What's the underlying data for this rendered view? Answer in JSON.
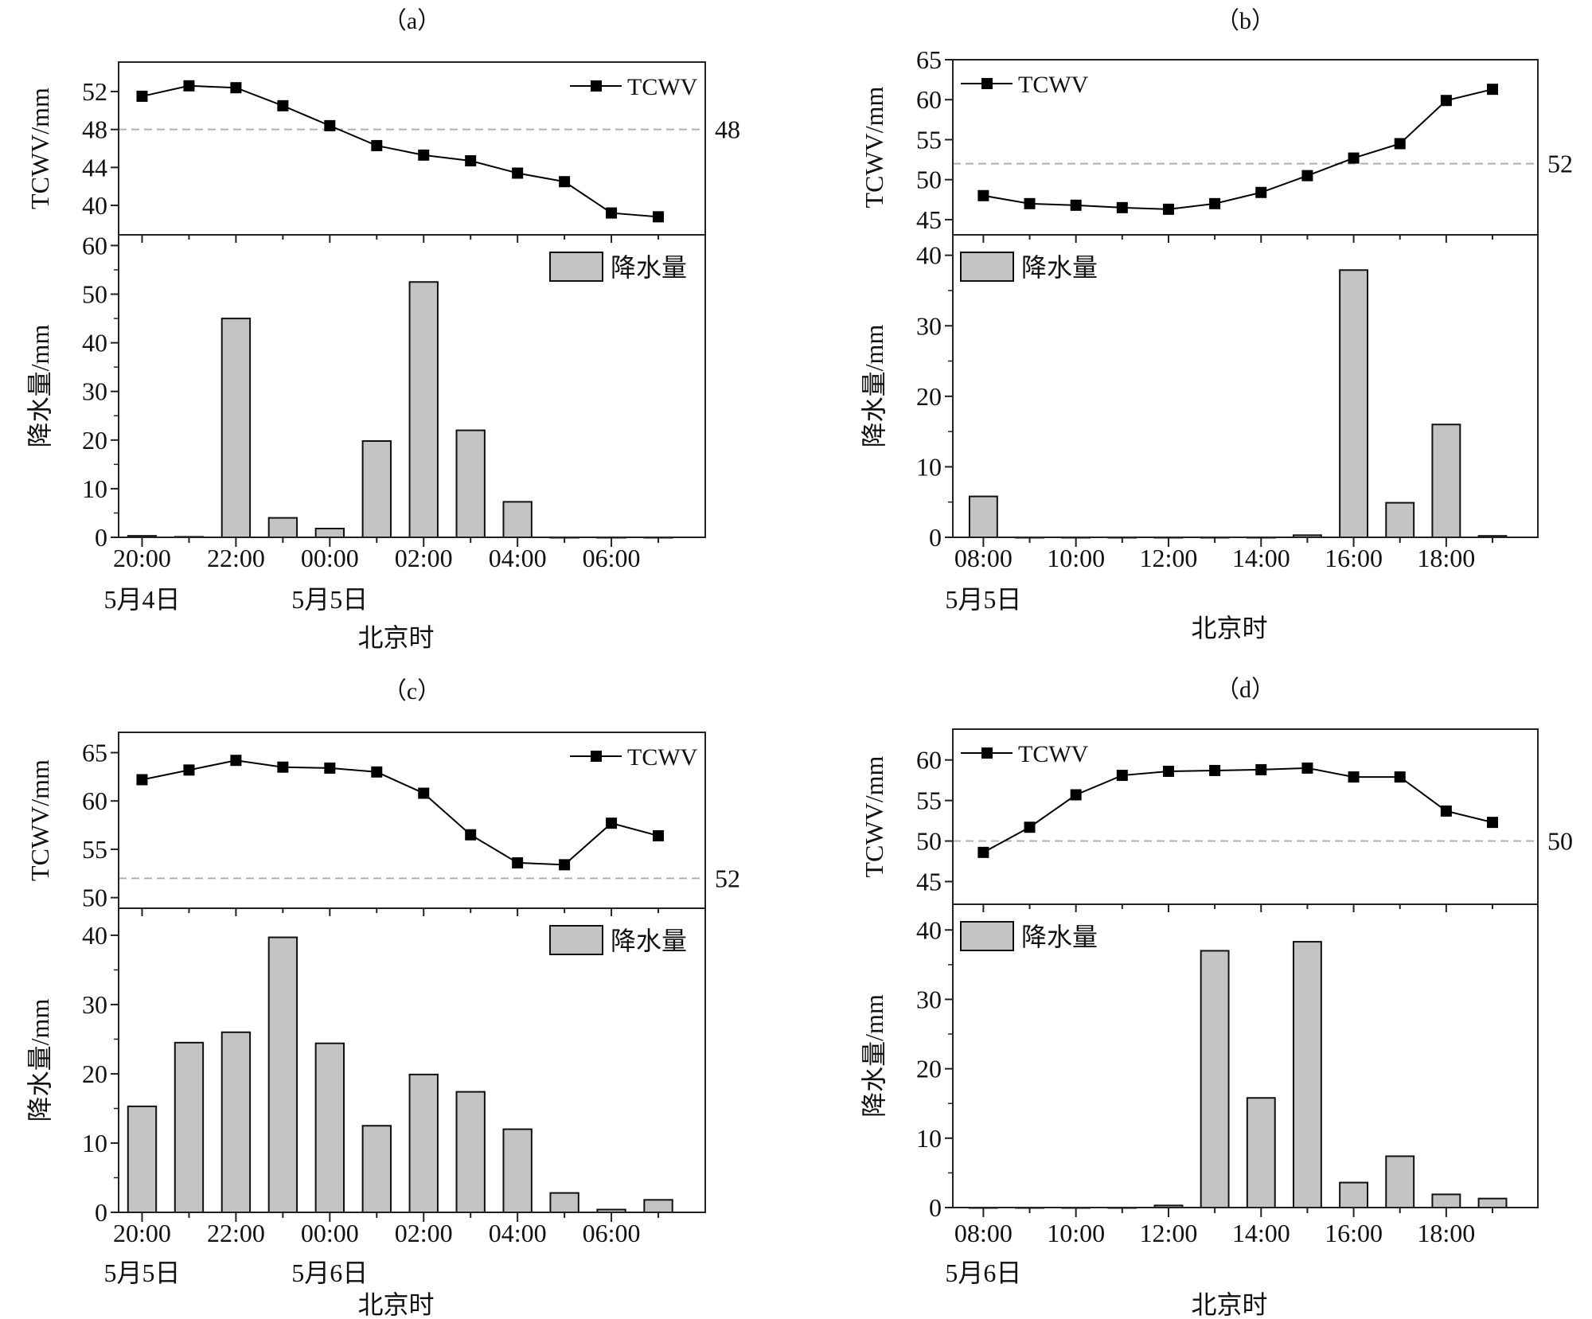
{
  "chart_data": [
    {
      "type": "line+bar",
      "title": "（a）",
      "categories": [
        "20:00",
        "21:00",
        "22:00",
        "23:00",
        "00:00",
        "01:00",
        "02:00",
        "03:00",
        "04:00",
        "05:00",
        "06:00",
        "07:00"
      ],
      "tick_labels": [
        "20:00",
        "22:00",
        "00:00",
        "02:00",
        "04:00",
        "06:00"
      ],
      "date_labels": [
        {
          "at": "20:00",
          "text": "5月4日"
        },
        {
          "at": "00:00",
          "text": "5月5日"
        }
      ],
      "xlabel": "北京时",
      "line": {
        "name": "TCWV",
        "ylabel": "TCWV/mm",
        "values": [
          51.5,
          52.6,
          52.4,
          50.5,
          48.4,
          46.3,
          45.3,
          44.7,
          43.4,
          42.5,
          39.2,
          38.8
        ],
        "ylim": [
          36.9,
          55.1
        ],
        "yticks": [
          40,
          44,
          48,
          52
        ],
        "threshold": 48,
        "threshold_label": "48",
        "legend": "top-right"
      },
      "bar": {
        "name": "降水量",
        "ylabel": "降水量/mm",
        "values": [
          0.3,
          0.1,
          45,
          4,
          1.8,
          19.8,
          52.5,
          22,
          7.3,
          0,
          0,
          0
        ],
        "ylim": [
          0,
          62.2
        ],
        "yticks": [
          0,
          10,
          20,
          30,
          40,
          50,
          60
        ],
        "legend": "top-right"
      }
    },
    {
      "type": "line+bar",
      "title": "（b）",
      "categories": [
        "08:00",
        "09:00",
        "10:00",
        "11:00",
        "12:00",
        "13:00",
        "14:00",
        "15:00",
        "16:00",
        "17:00",
        "18:00",
        "19:00"
      ],
      "tick_labels": [
        "08:00",
        "10:00",
        "12:00",
        "14:00",
        "16:00",
        "18:00"
      ],
      "date_labels": [
        {
          "at": "08:00",
          "text": "5月5日"
        }
      ],
      "xlabel": "北京时",
      "line": {
        "name": "TCWV",
        "ylabel": "TCWV/mm",
        "values": [
          48.0,
          47.0,
          46.8,
          46.5,
          46.3,
          47.0,
          48.4,
          50.5,
          52.7,
          54.5,
          59.9,
          61.3
        ],
        "ylim": [
          43.1,
          65
        ],
        "yticks": [
          45,
          50,
          55,
          60,
          65
        ],
        "threshold": 52,
        "threshold_label": "52",
        "legend": "top-left"
      },
      "bar": {
        "name": "降水量",
        "ylabel": "降水量/mm",
        "values": [
          5.8,
          0,
          0,
          0,
          0,
          0,
          0,
          0.3,
          37.9,
          4.9,
          16,
          0.2
        ],
        "ylim": [
          0,
          42.9
        ],
        "yticks": [
          0,
          10,
          20,
          30,
          40
        ],
        "legend": "top-left"
      }
    },
    {
      "type": "line+bar",
      "title": "（c）",
      "categories": [
        "20:00",
        "21:00",
        "22:00",
        "23:00",
        "00:00",
        "01:00",
        "02:00",
        "03:00",
        "04:00",
        "05:00",
        "06:00",
        "07:00"
      ],
      "tick_labels": [
        "20:00",
        "22:00",
        "00:00",
        "02:00",
        "04:00",
        "06:00"
      ],
      "date_labels": [
        {
          "at": "20:00",
          "text": "5月5日"
        },
        {
          "at": "00:00",
          "text": "5月6日"
        }
      ],
      "xlabel": "北京时",
      "line": {
        "name": "TCWV",
        "ylabel": "TCWV/mm",
        "values": [
          62.2,
          63.2,
          64.2,
          63.5,
          63.4,
          63.0,
          60.8,
          56.5,
          53.6,
          53.4,
          57.7,
          56.4
        ],
        "ylim": [
          48.9,
          67.1
        ],
        "yticks": [
          50,
          55,
          60,
          65
        ],
        "threshold": 52,
        "threshold_label": "52",
        "legend": "top-right"
      },
      "bar": {
        "name": "降水量",
        "ylabel": "降水量/mm",
        "values": [
          15.3,
          24.5,
          26,
          39.7,
          24.4,
          12.5,
          19.9,
          17.4,
          12,
          2.8,
          0.4,
          1.8
        ],
        "ylim": [
          0,
          43.9
        ],
        "yticks": [
          0,
          10,
          20,
          30,
          40
        ],
        "legend": "top-right"
      }
    },
    {
      "type": "line+bar",
      "title": "（d）",
      "categories": [
        "08:00",
        "09:00",
        "10:00",
        "11:00",
        "12:00",
        "13:00",
        "14:00",
        "15:00",
        "16:00",
        "17:00",
        "18:00",
        "19:00"
      ],
      "tick_labels": [
        "08:00",
        "10:00",
        "12:00",
        "14:00",
        "16:00",
        "18:00"
      ],
      "date_labels": [
        {
          "at": "08:00",
          "text": "5月6日"
        }
      ],
      "xlabel": "北京时",
      "line": {
        "name": "TCWV",
        "ylabel": "TCWV/mm",
        "values": [
          48.6,
          51.7,
          55.7,
          58.1,
          58.6,
          58.7,
          58.8,
          59.0,
          57.9,
          57.9,
          53.7,
          52.3
        ],
        "ylim": [
          42.2,
          63.8
        ],
        "yticks": [
          45,
          50,
          55,
          60
        ],
        "threshold": 50,
        "threshold_label": "50",
        "legend": "top-left"
      },
      "bar": {
        "name": "降水量",
        "ylabel": "降水量/mm",
        "values": [
          0,
          0,
          0,
          0,
          0.3,
          37,
          15.8,
          38.3,
          3.6,
          7.4,
          1.9,
          1.3
        ],
        "ylim": [
          0,
          43.7
        ],
        "yticks": [
          0,
          10,
          20,
          30,
          40
        ],
        "legend": "top-left"
      }
    }
  ],
  "colors": {
    "bar_fill": "#c4c4c4",
    "line": "#000000",
    "threshold": "#b0b0b0"
  }
}
